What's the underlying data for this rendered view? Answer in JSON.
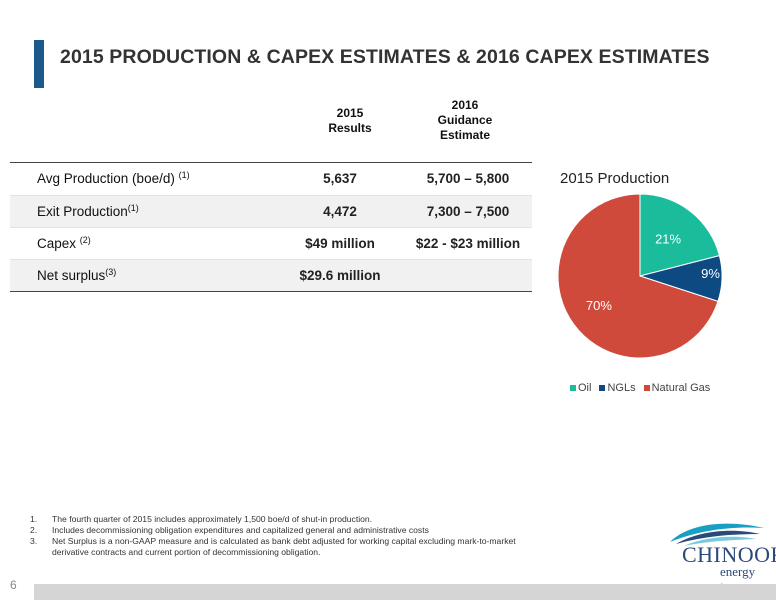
{
  "header": {
    "title": "2015 PRODUCTION & CAPEX ESTIMATES & 2016 CAPEX ESTIMATES"
  },
  "table": {
    "col_2015": [
      "2015",
      "Results"
    ],
    "col_2016": [
      "2016",
      "Guidance",
      "Estimate"
    ],
    "rows": [
      {
        "label": "Avg Production (boe/d) ",
        "sup": "(1)",
        "v2015": "5,637",
        "v2016": "5,700 – 5,800"
      },
      {
        "label": "Exit Production",
        "sup": "(1)",
        "v2015": "4,472",
        "v2016": "7,300 – 7,500"
      },
      {
        "label": "Capex ",
        "sup": "(2)",
        "v2015": "$49 million",
        "v2016": "$22 - $23 million"
      },
      {
        "label": "Net surplus",
        "sup": "(3)",
        "v2015": "$29.6 million",
        "v2016": ""
      }
    ]
  },
  "chart_data": {
    "type": "pie",
    "title": "2015 Production",
    "categories": [
      "Oil",
      "NGLs",
      "Natural Gas"
    ],
    "values": [
      21,
      9,
      70
    ],
    "data_labels": [
      "21%",
      "9%",
      "70%"
    ],
    "colors": [
      "#1abc9c",
      "#0e4a82",
      "#d04a3c"
    ],
    "legend_position": "bottom"
  },
  "footnotes": [
    {
      "num": "1.",
      "text": "The fourth quarter of 2015 includes approximately 1,500 boe/d of shut-in production."
    },
    {
      "num": "2.",
      "text": "Includes decommissioning obligation expenditures and capitalized general and administrative costs"
    },
    {
      "num": "3.",
      "text": "Net Surplus is a non-GAAP measure and is calculated as bank debt adjusted for working capital excluding mark-to-market derivative contracts and current portion of decommissioning obligation."
    }
  ],
  "logo": {
    "name": "CHINOOK",
    "sub": "energy inc"
  },
  "page_number": "6"
}
